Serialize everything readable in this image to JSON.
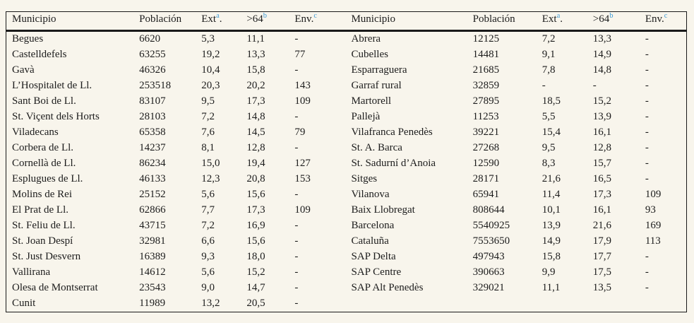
{
  "header": {
    "municipio": "Municipio",
    "poblacion": "Población",
    "ext_base": "Ext",
    "ext_sup": "a",
    "ext_suffix": ".",
    "age_base": ">64",
    "age_sup": "b",
    "env_base": "Env.",
    "env_sup": "c"
  },
  "left_rows": [
    [
      "Begues",
      "6620",
      "5,3",
      "11,1",
      "-"
    ],
    [
      "Castelldefels",
      "63255",
      "19,2",
      "13,3",
      "77"
    ],
    [
      "Gavà",
      "46326",
      "10,4",
      "15,8",
      "-"
    ],
    [
      "L’Hospitalet de Ll.",
      "253518",
      "20,3",
      "20,2",
      "143"
    ],
    [
      "Sant Boi de Ll.",
      "83107",
      "9,5",
      "17,3",
      "109"
    ],
    [
      "St. Viçent dels Horts",
      "28103",
      "7,2",
      "14,8",
      "-"
    ],
    [
      "Viladecans",
      "65358",
      "7,6",
      "14,5",
      "79"
    ],
    [
      "Corbera de Ll.",
      "14237",
      "8,1",
      "12,8",
      "-"
    ],
    [
      "Cornellà de Ll.",
      "86234",
      "15,0",
      "19,4",
      "127"
    ],
    [
      "Esplugues de Ll.",
      "46133",
      "12,3",
      "20,8",
      "153"
    ],
    [
      "Molins de Rei",
      "25152",
      "5,6",
      "15,6",
      "-"
    ],
    [
      "El Prat de Ll.",
      "62866",
      "7,7",
      "17,3",
      "109"
    ],
    [
      "St. Feliu de Ll.",
      "43715",
      "7,2",
      "16,9",
      "-"
    ],
    [
      "St. Joan Despí",
      "32981",
      "6,6",
      "15,6",
      "-"
    ],
    [
      "St. Just Desvern",
      "16389",
      "9,3",
      "18,0",
      "-"
    ],
    [
      "Vallirana",
      "14612",
      "5,6",
      "15,2",
      "-"
    ],
    [
      "Olesa de Montserrat",
      "23543",
      "9,0",
      "14,7",
      "-"
    ],
    [
      "Cunit",
      "11989",
      "13,2",
      "20,5",
      "-"
    ]
  ],
  "right_rows": [
    [
      "Abrera",
      "12125",
      "7,2",
      "13,3",
      "-"
    ],
    [
      "Cubelles",
      "14481",
      "9,1",
      "14,9",
      "-"
    ],
    [
      "Esparraguera",
      "21685",
      "7,8",
      "14,8",
      "-"
    ],
    [
      "Garraf rural",
      "32859",
      "-",
      "-",
      "-"
    ],
    [
      "Martorell",
      "27895",
      "18,5",
      "15,2",
      "-"
    ],
    [
      "Pallejà",
      "11253",
      "5,5",
      "13,9",
      "-"
    ],
    [
      "Vilafranca Penedès",
      "39221",
      "15,4",
      "16,1",
      "-"
    ],
    [
      "St. A. Barca",
      "27268",
      "9,5",
      "12,8",
      "-"
    ],
    [
      "St. Sadurní d’Anoia",
      "12590",
      "8,3",
      "15,7",
      "-"
    ],
    [
      "Sitges",
      "28171",
      "21,6",
      "16,5",
      "-"
    ],
    [
      "Vilanova",
      "65941",
      "11,4",
      "17,3",
      "109"
    ],
    [
      "Baix Llobregat",
      "808644",
      "10,1",
      "16,1",
      "93"
    ],
    [
      "Barcelona",
      "5540925",
      "13,9",
      "21,6",
      "169"
    ],
    [
      "Cataluña",
      "7553650",
      "14,9",
      "17,9",
      "113"
    ],
    [
      "SAP Delta",
      "497943",
      "15,8",
      "17,7",
      "-"
    ],
    [
      "SAP Centre",
      "390663",
      "9,9",
      "17,5",
      "-"
    ],
    [
      "SAP Alt Penedès",
      "329021",
      "11,1",
      "13,5",
      "-"
    ]
  ],
  "colors": {
    "accent_blue": "#3e9bd6",
    "background": "#f8f5ec",
    "text": "#1c1c1c",
    "border": "#1a1a1a"
  }
}
